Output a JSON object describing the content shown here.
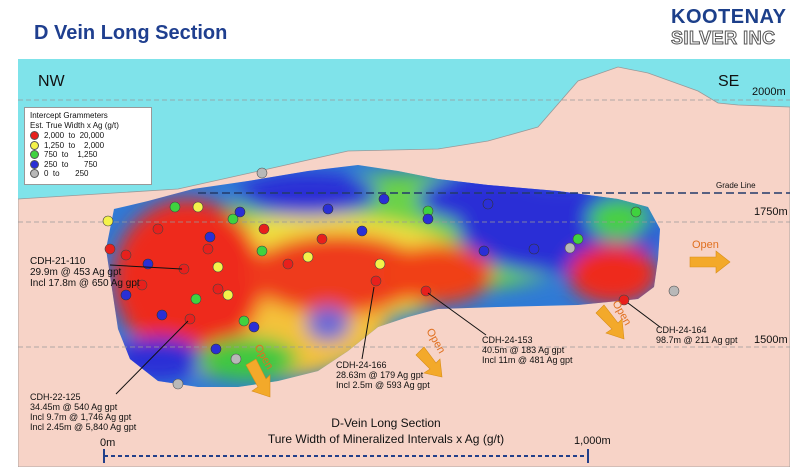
{
  "title": "D Vein Long Section",
  "logo": {
    "line1": "KOOTENAY",
    "line2": "SILVER INC"
  },
  "directions": {
    "left": "NW",
    "right": "SE"
  },
  "elevations": [
    "2000m",
    "1750m",
    "1500m"
  ],
  "grade_line_label": "Grade Line",
  "legend": {
    "title_line1": "Intercept Grammeters",
    "title_line2": "Est. True Width x Ag (g/t)",
    "items": [
      {
        "range": "2,000  to  20,000",
        "color": "#e8201c"
      },
      {
        "range": "1,250  to    2,000",
        "color": "#f4f24a"
      },
      {
        "range": "750  to    1,250",
        "color": "#3fd23f"
      },
      {
        "range": "250  to       750",
        "color": "#2a2fd6"
      },
      {
        "range": "0  to       250",
        "color": "#b8b8b8"
      }
    ]
  },
  "drill_holes": [
    {
      "id": "CDH-21-110",
      "line1": "29.9m @ 453 Ag gpt",
      "line2": "Incl 17.8m @ 650 Ag gpt",
      "line3": ""
    },
    {
      "id": "CDH-22-125",
      "line1": "34.45m @ 540 Ag gpt",
      "line2": "Incl 9.7m @ 1,746 Ag gpt",
      "line3": "Incl 2.45m @ 5,840 Ag gpt"
    },
    {
      "id": "CDH-24-166",
      "line1": "28.63m @ 179 Ag gpt",
      "line2": "Incl 2.5m @ 593 Ag gpt",
      "line3": ""
    },
    {
      "id": "CDH-24-153",
      "line1": "40.5m @ 183 Ag gpt",
      "line2": "Incl 11m @ 481 Ag gpt",
      "line3": ""
    },
    {
      "id": "CDH-24-164",
      "line1": "98.7m @ 211 Ag gpt",
      "line2": "",
      "line3": ""
    }
  ],
  "open_label": "Open",
  "caption": {
    "line1": "D-Vein Long Section",
    "line2": "Ture Width of Mineralized Intervals x Ag (g/t)"
  },
  "scale": {
    "start": "0m",
    "end": "1,000m"
  }
}
